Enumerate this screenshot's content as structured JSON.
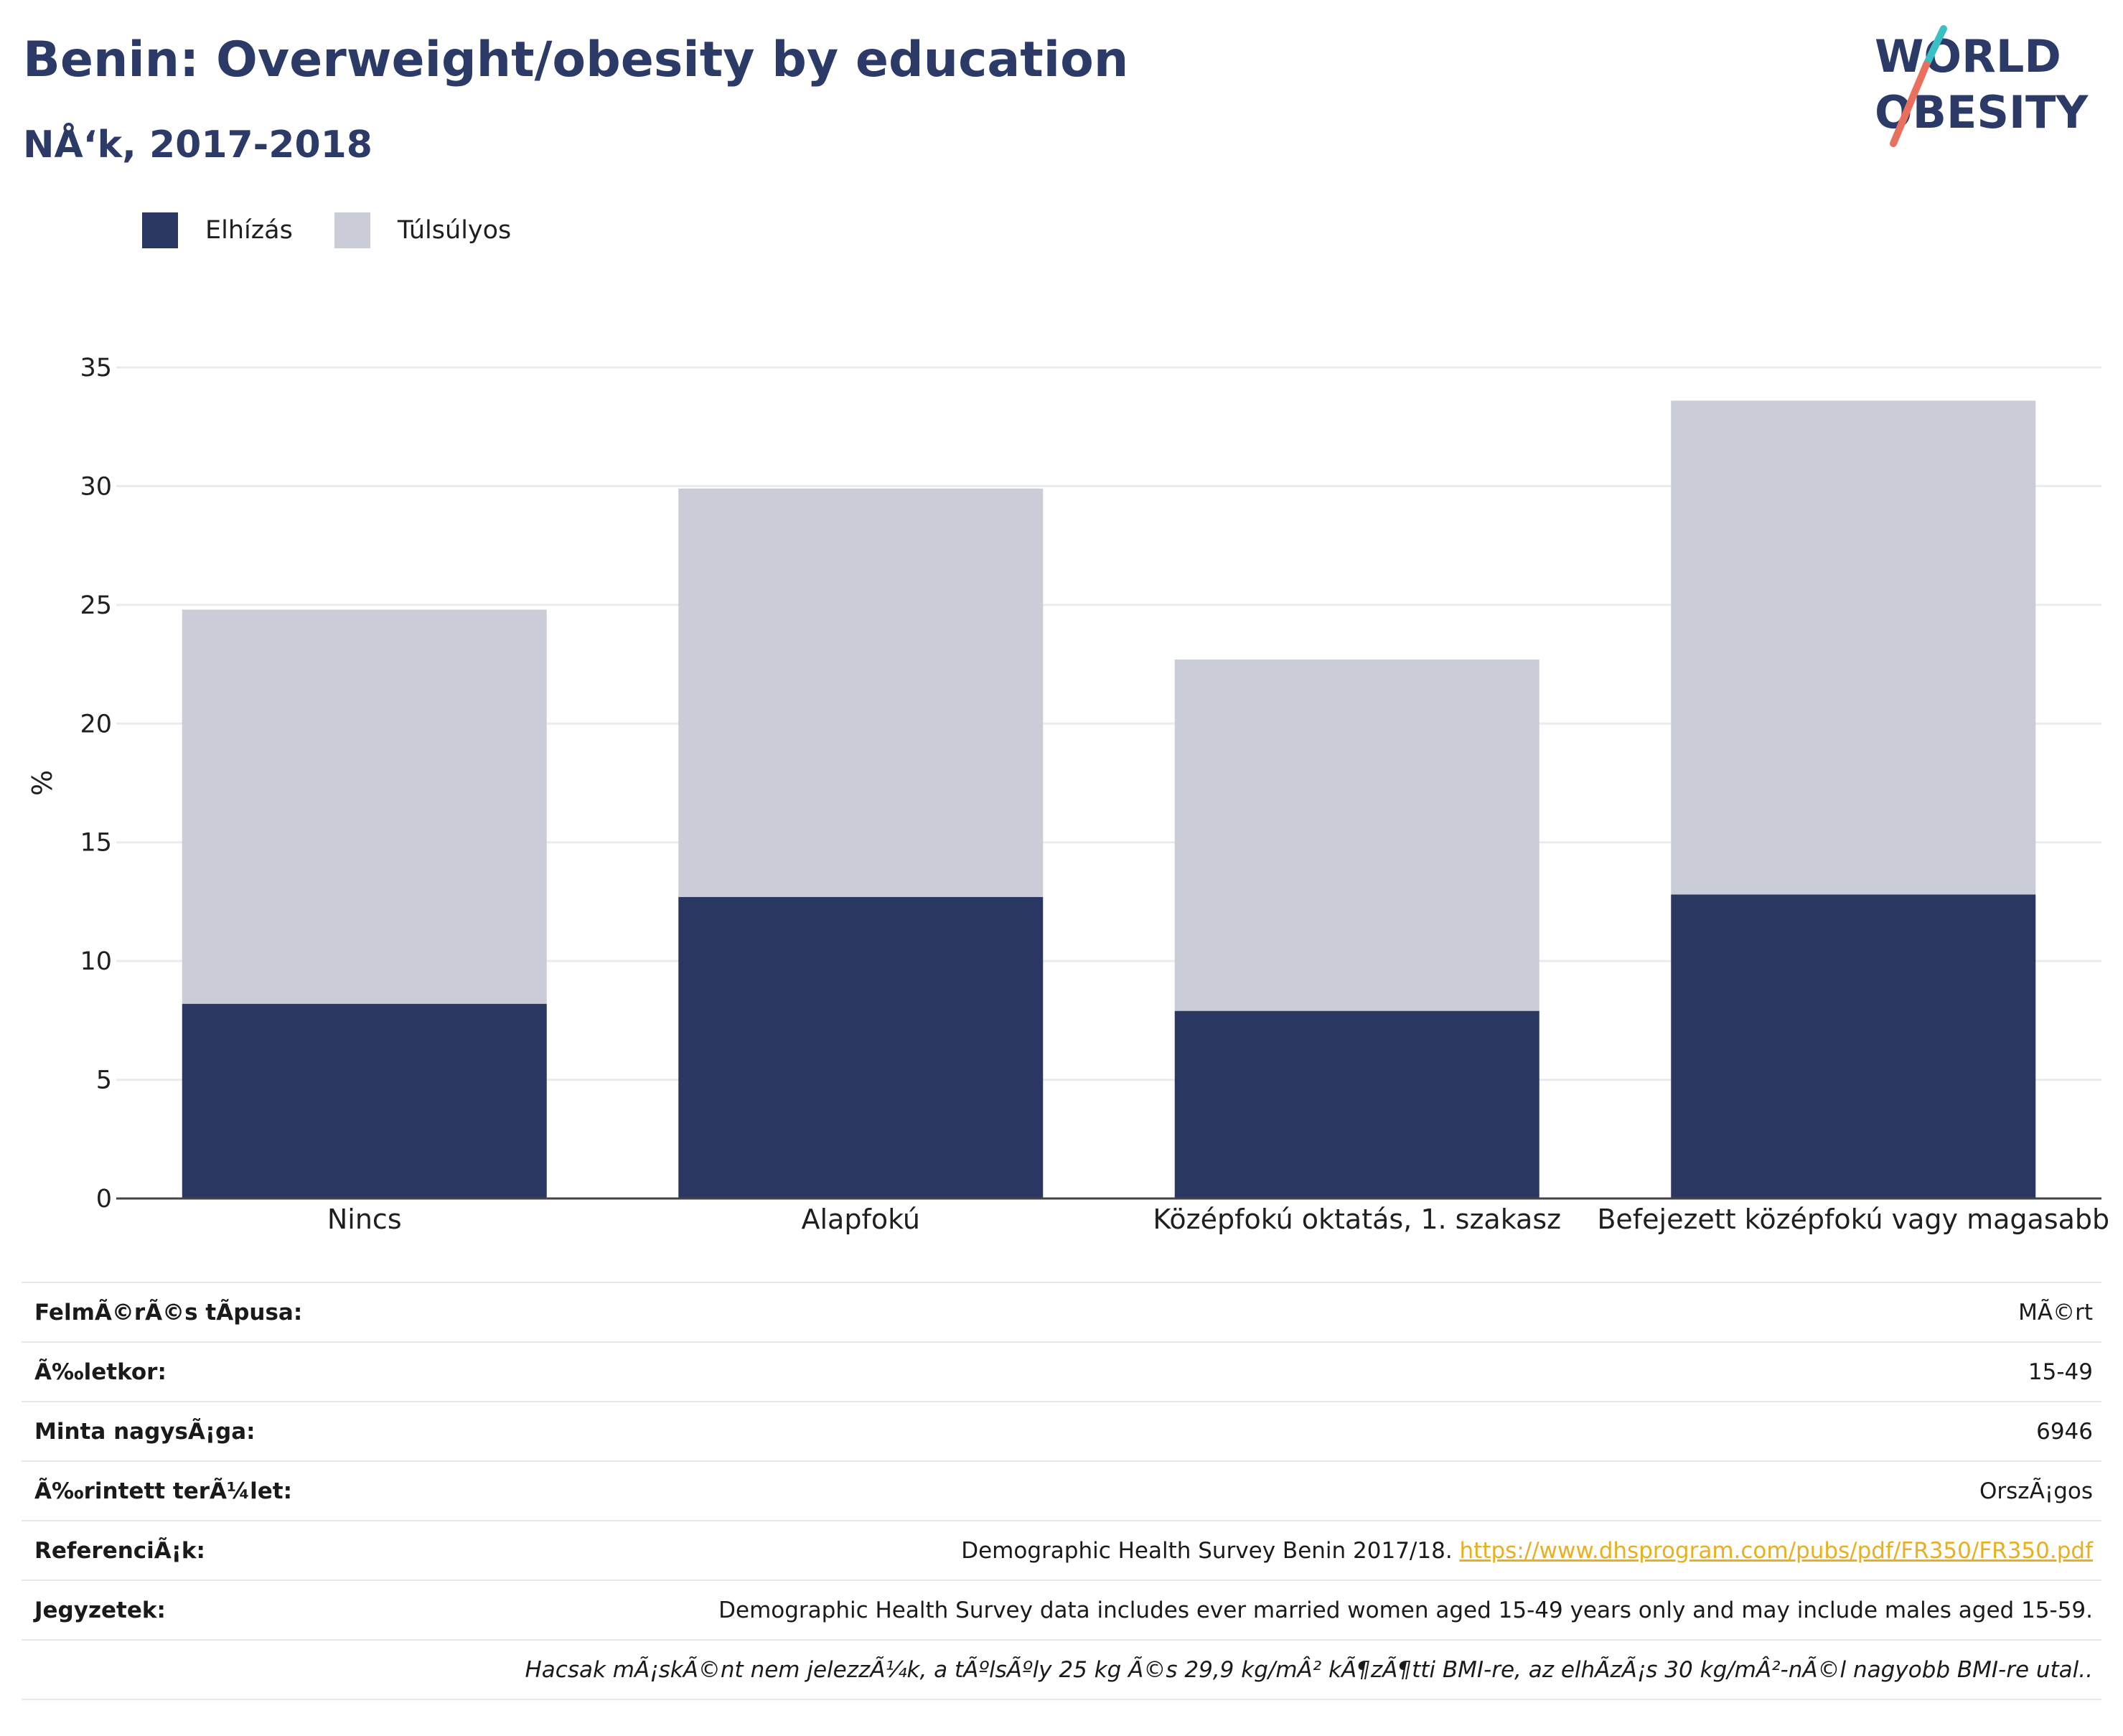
{
  "header": {
    "title": "Benin: Overweight/obesity by education",
    "subtitle": "NÅ‘k, 2017-2018"
  },
  "logo": {
    "line1": "WORLD",
    "line2": "OBESITY",
    "icon": "world-obesity-logo"
  },
  "colors": {
    "obesity": "#2b3763",
    "overweight": "#caccd8",
    "title": "#2b3a67",
    "link": "#e8b020"
  },
  "legend": [
    {
      "label": "Elhízás",
      "color": "#2b3763"
    },
    {
      "label": "Túlsúlyos",
      "color": "#caccd8"
    }
  ],
  "chart_data": {
    "type": "bar",
    "stacked": true,
    "categories": [
      "Nincs",
      "Alapfokú",
      "Középfokú oktatás, 1. szakasz",
      "Befejezett középfokú vagy magasabb"
    ],
    "series": [
      {
        "name": "Elhízás",
        "values": [
          8.2,
          12.7,
          7.9,
          12.8
        ]
      },
      {
        "name": "Túlsúlyos",
        "values": [
          16.6,
          17.2,
          14.8,
          20.8
        ]
      }
    ],
    "ylabel": "%",
    "ylim": [
      0,
      35
    ],
    "yticks": [
      0,
      5,
      10,
      15,
      20,
      25,
      30,
      35
    ],
    "grid": true,
    "legend_position": "top-left"
  },
  "info": {
    "rows": [
      {
        "label": "FelmÃ©rÃ©s tÃpusa:",
        "value": "MÃ©rt"
      },
      {
        "label": "Ã‰letkor:",
        "value": "15-49"
      },
      {
        "label": "Minta nagysÃ¡ga:",
        "value": "6946"
      },
      {
        "label": "Ã‰rintett terÃ¼let:",
        "value": "OrszÃ¡gos"
      }
    ],
    "references": {
      "label": "ReferenciÃ¡k:",
      "text": "Demographic Health Survey Benin 2017/18.",
      "link": "https://www.dhsprogram.com/pubs/pdf/FR350/FR350.pdf"
    },
    "notes": {
      "label": "Jegyzetek:",
      "text": "Demographic Health Survey data includes ever married women aged 15-49 years only and may include males aged 15-59.",
      "footnote": "Hacsak mÃ¡skÃ©nt nem jelezzÃ¼k, a tÃºlsÃºly 25 kg Ã©s 29,9 kg/mÂ² kÃ¶zÃ¶tti BMI-re, az elhÃ­zÃ¡s 30 kg/mÂ²-nÃ©l nagyobb BMI-re utal.."
    }
  }
}
